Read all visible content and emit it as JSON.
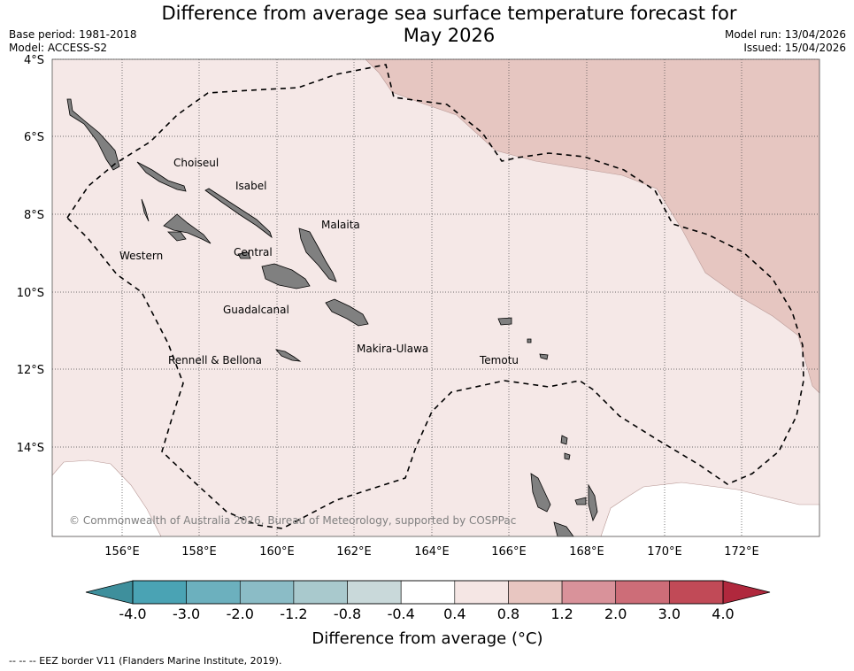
{
  "title": {
    "line1": "Difference from average sea surface temperature forecast for",
    "line2": "May 2026"
  },
  "meta": {
    "base_period": "Base period: 1981-2018",
    "model": "Model: ACCESS-S2",
    "model_run": "Model run: 13/04/2026",
    "issued": "Issued: 15/04/2026"
  },
  "map": {
    "lat_ticks": [
      "4°S",
      "6°S",
      "8°S",
      "10°S",
      "12°S",
      "14°S"
    ],
    "lon_ticks": [
      "156°E",
      "158°E",
      "160°E",
      "162°E",
      "164°E",
      "166°E",
      "168°E",
      "170°E",
      "172°E"
    ],
    "places": [
      "Choiseul",
      "Isabel",
      "Malaita",
      "Western",
      "Central",
      "Guadalcanal",
      "Makira-Ulawa",
      "Rennell & Bellona",
      "Temotu"
    ],
    "copyright": "© Commonwealth of Australia 2026, Bureau of Meteorology, supported by COSPPac"
  },
  "colorbar": {
    "labels": [
      "-4.0",
      "-3.0",
      "-2.0",
      "-1.2",
      "-0.8",
      "-0.4",
      "0.4",
      "0.8",
      "1.2",
      "2.0",
      "3.0",
      "4.0"
    ],
    "colors": [
      "#4aa3b4",
      "#6cb0be",
      "#8bbcc6",
      "#a9c9cd",
      "#c9d9da",
      "#ffffff",
      "#f5e6e4",
      "#e8c6c1",
      "#d9929a",
      "#cd6d78",
      "#c14a57"
    ],
    "low_extend_color": "#3e8f9c",
    "high_extend_color": "#b0283d",
    "title": "Difference from average (°C)"
  },
  "footnote": "--  --  -- EEZ border V11 (Flanders Marine Institute, 2019)."
}
